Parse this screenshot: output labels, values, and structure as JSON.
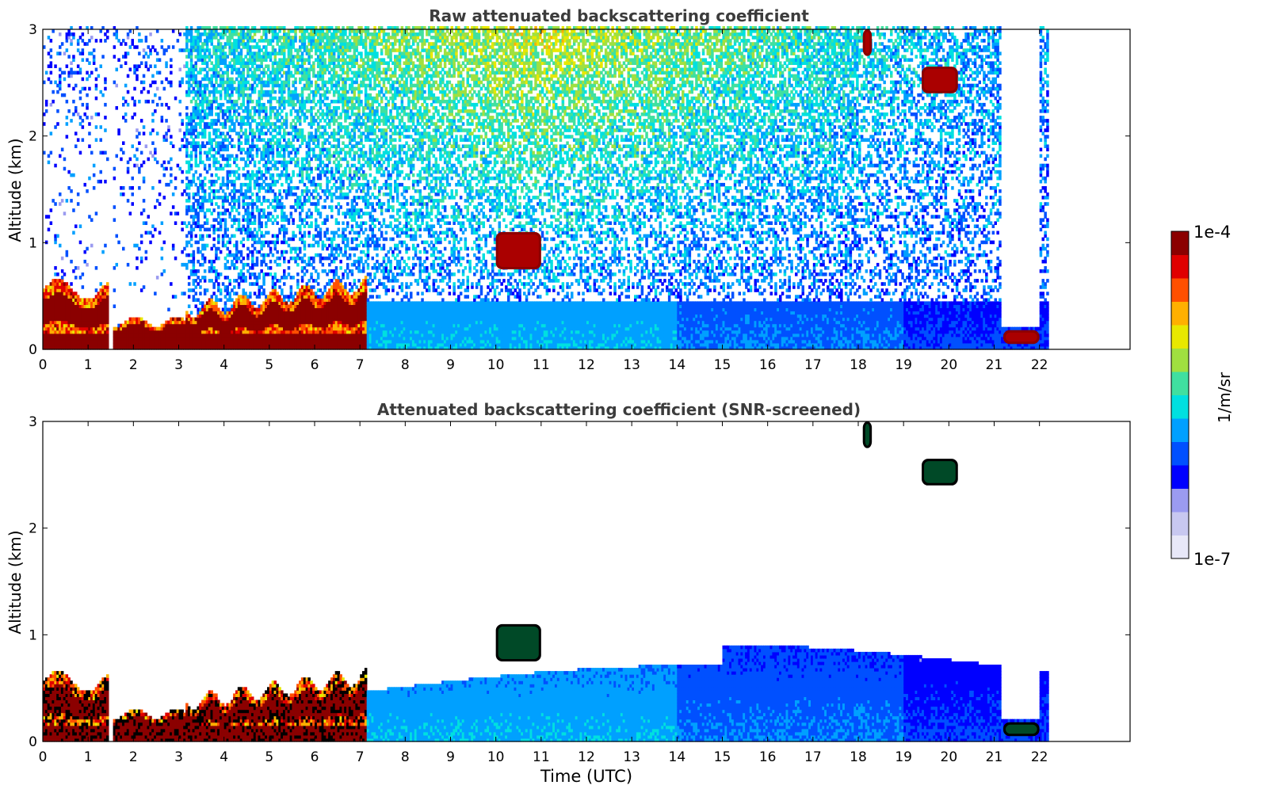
{
  "panels": [
    {
      "title": "Raw attenuated backscattering coefficient",
      "ylabel": "Altitude (km)",
      "xlabel": ""
    },
    {
      "title": "Attenuated backscattering coefficient (SNR-screened)",
      "ylabel": "Altitude (km)",
      "xlabel": "Time (UTC)"
    }
  ],
  "colorbar": {
    "max_label": "1e-4",
    "min_label": "1e-7",
    "unit_label": "1/m/sr",
    "colors": [
      "#e8e8f8",
      "#c8c8f0",
      "#9b9bf0",
      "#0000ff",
      "#0050ff",
      "#00a0ff",
      "#00e0e0",
      "#40e0a0",
      "#a0e040",
      "#e8e800",
      "#ffb000",
      "#ff5000",
      "#e00000",
      "#8b0000"
    ]
  },
  "chart_data": [
    {
      "type": "heatmap",
      "title": "Raw attenuated backscattering coefficient",
      "ylabel": "Altitude (km)",
      "xlabel": "",
      "xlim": [
        0,
        24
      ],
      "ylim": [
        0,
        3
      ],
      "x_ticks": [
        0,
        1,
        2,
        3,
        4,
        5,
        6,
        7,
        8,
        9,
        10,
        11,
        12,
        13,
        14,
        15,
        16,
        17,
        18,
        19,
        20,
        21,
        22
      ],
      "y_ticks": [
        0,
        1,
        2,
        3
      ],
      "color_scale": "log",
      "colorbar_range": [
        1e-07,
        0.0001
      ],
      "data_end_time": 22.2,
      "gaps": [
        [
          1.43,
          1.55
        ]
      ],
      "features": [
        {
          "kind": "boundary_layer_high",
          "time": [
            0,
            7.1
          ],
          "altitude": [
            0.05,
            0.6
          ]
        },
        {
          "kind": "surface_layer",
          "time": [
            7.1,
            21.1
          ],
          "altitude": [
            0,
            0.45
          ]
        },
        {
          "kind": "noise_high",
          "time": [
            3.1,
            21.0
          ],
          "altitude": [
            0.5,
            3
          ]
        },
        {
          "kind": "cloud",
          "time": [
            19.4,
            20.2
          ],
          "altitude": [
            2.4,
            2.65
          ]
        },
        {
          "kind": "cloud",
          "time": [
            21.2,
            22.0
          ],
          "altitude": [
            0.05,
            0.18
          ]
        },
        {
          "kind": "cloud",
          "time": [
            18.1,
            18.3
          ],
          "altitude": [
            2.75,
            3.0
          ]
        },
        {
          "kind": "cloud",
          "time": [
            10.0,
            11.0
          ],
          "altitude": [
            0.75,
            1.1
          ]
        }
      ]
    },
    {
      "type": "heatmap",
      "title": "Attenuated backscattering coefficient (SNR-screened)",
      "ylabel": "Altitude (km)",
      "xlabel": "Time (UTC)",
      "xlim": [
        0,
        24
      ],
      "ylim": [
        0,
        3
      ],
      "x_ticks": [
        0,
        1,
        2,
        3,
        4,
        5,
        6,
        7,
        8,
        9,
        10,
        11,
        12,
        13,
        14,
        15,
        16,
        17,
        18,
        19,
        20,
        21,
        22
      ],
      "y_ticks": [
        0,
        1,
        2,
        3
      ],
      "color_scale": "log",
      "colorbar_range": [
        1e-07,
        0.0001
      ],
      "data_end_time": 22.2,
      "gaps": [
        [
          1.43,
          1.55
        ]
      ],
      "features": [
        {
          "kind": "boundary_layer_high",
          "time": [
            0,
            7.1
          ],
          "altitude": [
            0.05,
            0.6
          ]
        },
        {
          "kind": "surface_layer",
          "time": [
            7.1,
            22.2
          ],
          "altitude": [
            0,
            0.8
          ]
        },
        {
          "kind": "cloud",
          "time": [
            19.4,
            20.2
          ],
          "altitude": [
            2.4,
            2.65
          ]
        },
        {
          "kind": "cloud",
          "time": [
            21.2,
            22.0
          ],
          "altitude": [
            0.05,
            0.18
          ]
        },
        {
          "kind": "cloud",
          "time": [
            18.1,
            18.3
          ],
          "altitude": [
            2.75,
            3.0
          ]
        },
        {
          "kind": "cloud",
          "time": [
            10.0,
            11.0
          ],
          "altitude": [
            0.75,
            1.1
          ]
        }
      ]
    }
  ]
}
